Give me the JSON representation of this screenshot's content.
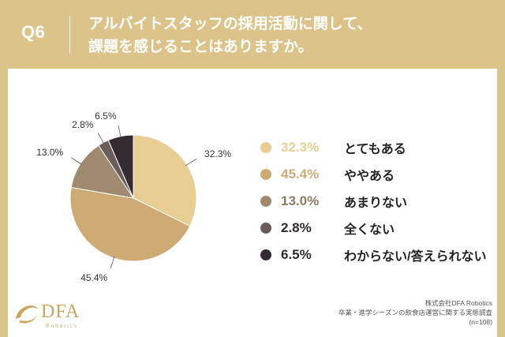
{
  "header": {
    "qnum": "Q6",
    "title_line1": "アルバイトスタッフの採用活動に関して、",
    "title_line2": "課題を感じることはありますか。"
  },
  "chart_data": {
    "type": "pie",
    "categories": [
      "とてもある",
      "ややある",
      "あまりない",
      "全くない",
      "わからない/答えられない"
    ],
    "values": [
      32.3,
      45.4,
      13.0,
      2.8,
      6.5
    ],
    "value_labels": [
      "32.3%",
      "45.4%",
      "13.0%",
      "2.8%",
      "6.5%"
    ],
    "colors": [
      "#e8cd94",
      "#ceab75",
      "#a08a6f",
      "#6b5c5c",
      "#352b33"
    ],
    "legend_position": "right"
  },
  "logo": {
    "name": "DFA",
    "sub": "Robotics"
  },
  "source": {
    "line1": "株式会社DFA Robotics",
    "line2": "卒業・進学シーズンの飲食店運営に関する実態調査",
    "line3": "(n=108)"
  }
}
